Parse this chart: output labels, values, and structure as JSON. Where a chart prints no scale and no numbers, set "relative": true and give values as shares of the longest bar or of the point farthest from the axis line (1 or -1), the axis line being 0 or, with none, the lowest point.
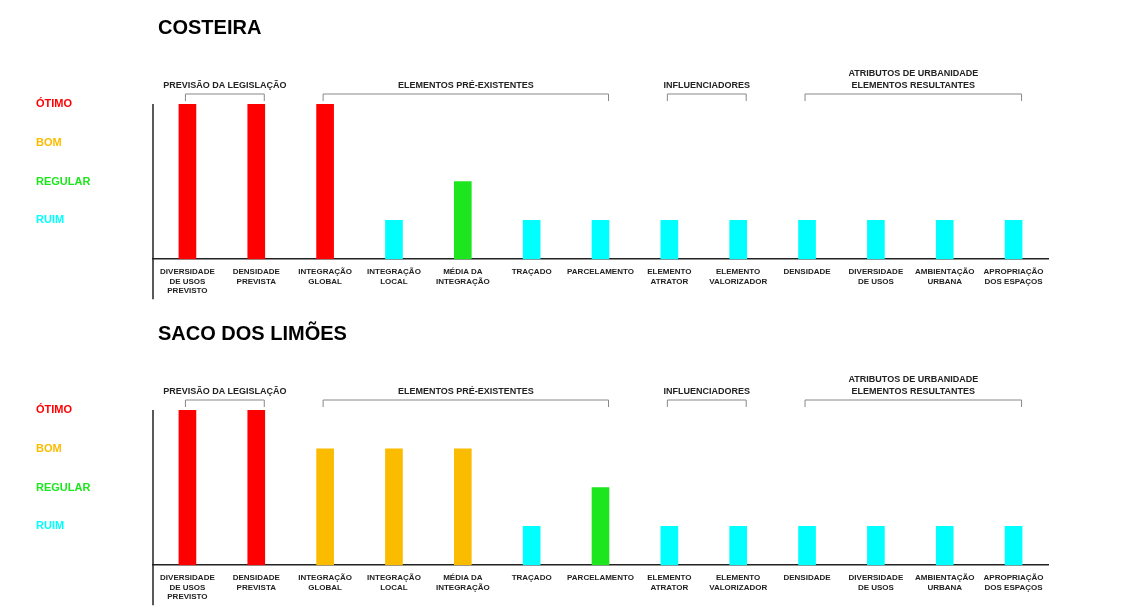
{
  "chart_data": [
    {
      "type": "bar",
      "title": "COSTEIRA",
      "relative": true,
      "categories": [
        "DIVERSIDADE\nDE USOS\nPREVISTO",
        "DENSIDADE\nPREVISTA",
        "INTEGRAÇÃO\nGLOBAL",
        "INTEGRAÇÃO\nLOCAL",
        "MÉDIA DA\nINTEGRAÇÃO",
        "TRAÇADO",
        "PARCELAMENTO",
        "ELEMENTO\nATRATOR",
        "ELEMENTO\nVALORIZADOR",
        "DENSIDADE",
        "DIVERSIDADE\nDE USOS",
        "AMBIENTAÇÃO\nURBANA",
        "APROPRIAÇÃO\nDOS ESPAÇOS"
      ],
      "values": [
        1,
        1,
        1,
        0.25,
        0.5,
        0.25,
        0.25,
        0.25,
        0.25,
        0.25,
        0.25,
        0.25,
        0.25
      ],
      "colors": [
        "#ff0000",
        "#ff0000",
        "#ff0000",
        "#00ffff",
        "#1ee61e",
        "#00ffff",
        "#00ffff",
        "#00ffff",
        "#00ffff",
        "#00ffff",
        "#00ffff",
        "#00ffff",
        "#00ffff"
      ],
      "annotations": [
        "PREVISÃO DA LEGISLAÇÃO",
        "ELEMENTOS PRÉ-EXISTENTES",
        "INFLUENCIADORES",
        "ATRIBUTOS DE URBANIDADE\nELEMENTOS RESULTANTES",
        "ÓTIMO",
        "BOM",
        "REGULAR",
        "RUIM"
      ]
    },
    {
      "type": "bar",
      "title": "SACO DOS LIMÕES",
      "relative": true,
      "categories": [
        "DIVERSIDADE\nDE USOS\nPREVISTO",
        "DENSIDADE\nPREVISTA",
        "INTEGRAÇÃO\nGLOBAL",
        "INTEGRAÇÃO\nLOCAL",
        "MÉDIA DA\nINTEGRAÇÃO",
        "TRAÇADO",
        "PARCELAMENTO",
        "ELEMENTO\nATRATOR",
        "ELEMENTO\nVALORIZADOR",
        "DENSIDADE",
        "DIVERSIDADE\nDE USOS",
        "AMBIENTAÇÃO\nURBANA",
        "APROPRIAÇÃO\nDOS ESPAÇOS"
      ],
      "values": [
        1,
        1,
        0.75,
        0.75,
        0.75,
        0.25,
        0.5,
        0.25,
        0.25,
        0.25,
        0.25,
        0.25,
        0.25
      ],
      "colors": [
        "#ff0000",
        "#ff0000",
        "#fbbc00",
        "#fbbc00",
        "#fbbc00",
        "#00ffff",
        "#1ee61e",
        "#00ffff",
        "#00ffff",
        "#00ffff",
        "#00ffff",
        "#00ffff",
        "#00ffff"
      ],
      "annotations": [
        "PREVISÃO DA LEGISLAÇÃO",
        "ELEMENTOS PRÉ-EXISTENTES",
        "INFLUENCIADORES",
        "ATRIBUTOS DE URBANIDADE\nELEMENTOS RESULTANTES",
        "ÓTIMO",
        "BOM",
        "REGULAR",
        "RUIM"
      ]
    }
  ]
}
